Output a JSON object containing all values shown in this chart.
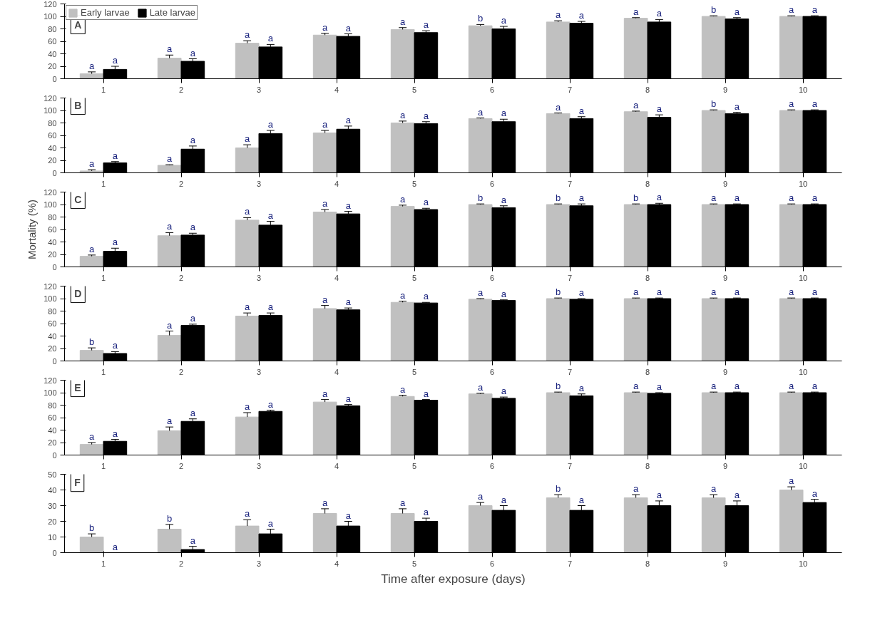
{
  "chart_data": [
    {
      "type": "bar",
      "title": "A",
      "categories": [
        "1",
        "2",
        "3",
        "4",
        "5",
        "6",
        "7",
        "8",
        "9",
        "10"
      ],
      "ylim": [
        0,
        120
      ],
      "yticks": [
        0,
        20,
        40,
        60,
        80,
        100,
        120
      ],
      "grid": false,
      "legend": "top left",
      "series": [
        {
          "name": "Early larvae",
          "color": "#c0c0c0",
          "values": [
            8,
            33,
            57,
            70,
            79,
            85,
            91,
            97,
            100,
            100
          ],
          "errors": [
            3,
            5,
            4,
            3,
            3,
            2,
            2,
            1,
            1,
            1
          ],
          "value_labels": [
            "a",
            "a",
            "a",
            "a",
            "a",
            "b",
            "a",
            "a",
            "b",
            "a"
          ]
        },
        {
          "name": "Late larvae",
          "color": "#000000",
          "values": [
            15,
            28,
            51,
            68,
            74,
            80,
            89,
            91,
            96,
            100
          ],
          "errors": [
            5,
            4,
            4,
            4,
            3,
            4,
            3,
            4,
            2,
            1
          ],
          "value_labels": [
            "a",
            "a",
            "a",
            "a",
            "a",
            "a",
            "a",
            "a",
            "a",
            "a"
          ]
        }
      ]
    },
    {
      "type": "bar",
      "title": "B",
      "categories": [
        "1",
        "2",
        "3",
        "4",
        "5",
        "6",
        "7",
        "8",
        "9",
        "10"
      ],
      "ylim": [
        0,
        120
      ],
      "yticks": [
        0,
        20,
        40,
        60,
        80,
        100,
        120
      ],
      "grid": false,
      "series": [
        {
          "color": "#c0c0c0",
          "values": [
            3,
            12,
            40,
            64,
            80,
            87,
            95,
            98,
            100,
            100
          ],
          "errors": [
            2,
            1,
            5,
            4,
            3,
            1,
            1,
            1,
            1,
            1
          ],
          "value_labels": [
            "a",
            "a",
            "a",
            "a",
            "a",
            "a",
            "a",
            "a",
            "b",
            "a"
          ]
        },
        {
          "color": "#000000",
          "values": [
            16,
            38,
            63,
            70,
            79,
            82,
            87,
            89,
            95,
            100
          ],
          "errors": [
            2,
            5,
            5,
            5,
            3,
            4,
            3,
            4,
            2,
            1
          ],
          "value_labels": [
            "a",
            "a",
            "a",
            "a",
            "a",
            "a",
            "a",
            "a",
            "a",
            "a"
          ]
        }
      ]
    },
    {
      "type": "bar",
      "title": "C",
      "ylabel": "Mortality (%)",
      "categories": [
        "1",
        "2",
        "3",
        "4",
        "5",
        "6",
        "7",
        "8",
        "9",
        "10"
      ],
      "ylim": [
        0,
        120
      ],
      "yticks": [
        0,
        20,
        40,
        60,
        80,
        100,
        120
      ],
      "grid": false,
      "series": [
        {
          "color": "#c0c0c0",
          "values": [
            17,
            50,
            75,
            88,
            97,
            100,
            100,
            100,
            100,
            100
          ],
          "errors": [
            2,
            5,
            4,
            4,
            2,
            1,
            1,
            1,
            1,
            1
          ],
          "value_labels": [
            "a",
            "a",
            "a",
            "a",
            "a",
            "b",
            "b",
            "b",
            "a",
            "a"
          ]
        },
        {
          "color": "#000000",
          "values": [
            25,
            51,
            67,
            85,
            92,
            95,
            98,
            100,
            100,
            100
          ],
          "errors": [
            5,
            3,
            6,
            4,
            2,
            3,
            3,
            2,
            1,
            1
          ],
          "value_labels": [
            "a",
            "a",
            "a",
            "a",
            "a",
            "a",
            "a",
            "a",
            "a",
            "a"
          ]
        }
      ]
    },
    {
      "type": "bar",
      "title": "D",
      "categories": [
        "1",
        "2",
        "3",
        "4",
        "5",
        "6",
        "7",
        "8",
        "9",
        "10"
      ],
      "ylim": [
        0,
        120
      ],
      "yticks": [
        0,
        20,
        40,
        60,
        80,
        100,
        120
      ],
      "grid": false,
      "series": [
        {
          "color": "#c0c0c0",
          "values": [
            17,
            41,
            72,
            84,
            94,
            99,
            100,
            100,
            100,
            100
          ],
          "errors": [
            4,
            7,
            5,
            5,
            2,
            1,
            1,
            1,
            1,
            1
          ],
          "value_labels": [
            "b",
            "a",
            "a",
            "a",
            "a",
            "a",
            "b",
            "a",
            "a",
            "a"
          ]
        },
        {
          "color": "#000000",
          "values": [
            12,
            57,
            73,
            82,
            93,
            97,
            99,
            100,
            100,
            100
          ],
          "errors": [
            3,
            2,
            4,
            3,
            1,
            1,
            1,
            1,
            1,
            1
          ],
          "value_labels": [
            "a",
            "a",
            "a",
            "a",
            "a",
            "a",
            "a",
            "a",
            "a",
            "a"
          ]
        }
      ]
    },
    {
      "type": "bar",
      "title": "E",
      "categories": [
        "1",
        "2",
        "3",
        "4",
        "5",
        "6",
        "7",
        "8",
        "9",
        "10"
      ],
      "ylim": [
        0,
        120
      ],
      "yticks": [
        0,
        20,
        40,
        60,
        80,
        100,
        120
      ],
      "grid": false,
      "series": [
        {
          "color": "#c0c0c0",
          "values": [
            17,
            39,
            61,
            85,
            94,
            98,
            100,
            100,
            100,
            100
          ],
          "errors": [
            3,
            6,
            7,
            4,
            2,
            1,
            1,
            1,
            1,
            1
          ],
          "value_labels": [
            "a",
            "a",
            "a",
            "a",
            "a",
            "a",
            "b",
            "a",
            "a",
            "a"
          ]
        },
        {
          "color": "#000000",
          "values": [
            22,
            54,
            70,
            79,
            88,
            91,
            95,
            99,
            100,
            100
          ],
          "errors": [
            3,
            4,
            2,
            2,
            1,
            2,
            3,
            1,
            1,
            1
          ],
          "value_labels": [
            "a",
            "a",
            "a",
            "a",
            "a",
            "a",
            "a",
            "a",
            "a",
            "a"
          ]
        }
      ]
    },
    {
      "type": "bar",
      "title": "F",
      "xlabel": "Time after exposure (days)",
      "categories": [
        "1",
        "2",
        "3",
        "4",
        "5",
        "6",
        "7",
        "8",
        "9",
        "10"
      ],
      "ylim": [
        0,
        50
      ],
      "yticks": [
        0,
        10,
        20,
        30,
        40,
        50
      ],
      "grid": false,
      "series": [
        {
          "color": "#c0c0c0",
          "values": [
            10,
            15,
            17,
            25,
            25,
            30,
            35,
            35,
            35,
            40
          ],
          "errors": [
            2,
            3,
            4,
            3,
            3,
            2,
            2,
            2,
            2,
            2
          ],
          "value_labels": [
            "b",
            "b",
            "a",
            "a",
            "a",
            "a",
            "b",
            "a",
            "a",
            "a"
          ]
        },
        {
          "color": "#000000",
          "values": [
            0,
            2,
            12,
            17,
            20,
            27,
            27,
            30,
            30,
            32
          ],
          "errors": [
            null,
            2,
            3,
            3,
            2,
            3,
            3,
            3,
            3,
            2
          ],
          "value_labels": [
            "a",
            "a",
            "a",
            "a",
            "a",
            "a",
            "a",
            "a",
            "a",
            "a"
          ]
        }
      ]
    }
  ]
}
